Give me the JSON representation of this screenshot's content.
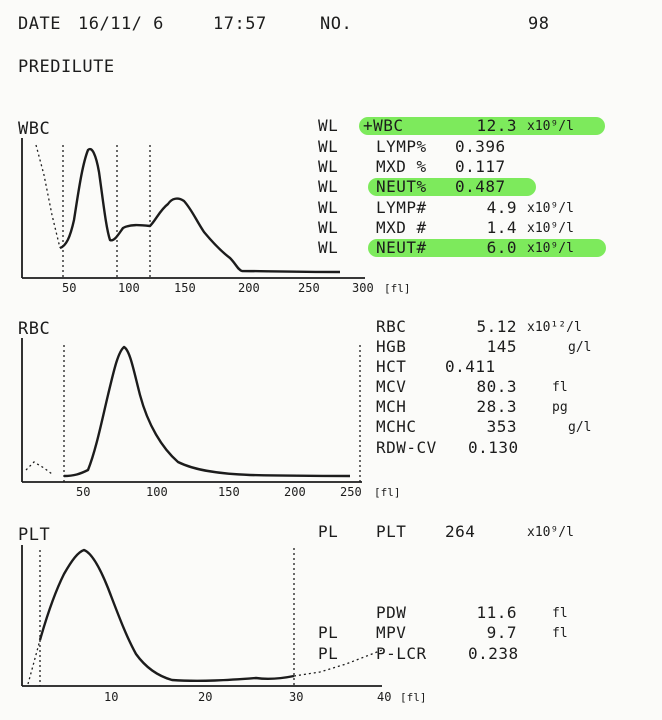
{
  "accent": "#7dea5c",
  "header": {
    "date_label": "DATE",
    "date": "16/11/ 6",
    "time": "17:57",
    "no_label": "NO.",
    "no_value": "98",
    "mode": "PREDILUTE"
  },
  "wbc": {
    "title": "WBC",
    "axis_unit": "[fl]",
    "ticks": [
      "50",
      "100",
      "150",
      "200",
      "250",
      "300"
    ],
    "rows": [
      {
        "flag": "WL",
        "name": "+WBC",
        "value": "12.3",
        "unit": "x10⁹/l",
        "highlight": true
      },
      {
        "flag": "WL",
        "name": "LYMP%",
        "value": "0.396",
        "unit": "",
        "highlight": false
      },
      {
        "flag": "WL",
        "name": "MXD %",
        "value": "0.117",
        "unit": "",
        "highlight": false
      },
      {
        "flag": "WL",
        "name": "NEUT%",
        "value": "0.487",
        "unit": "",
        "highlight": true
      },
      {
        "flag": "WL",
        "name": "LYMP#",
        "value": "4.9",
        "unit": "x10⁹/l",
        "highlight": false
      },
      {
        "flag": "WL",
        "name": "MXD #",
        "value": "1.4",
        "unit": "x10⁹/l",
        "highlight": false
      },
      {
        "flag": "WL",
        "name": "NEUT#",
        "value": "6.0",
        "unit": "x10⁹/l",
        "highlight": true
      }
    ]
  },
  "rbc": {
    "title": "RBC",
    "axis_unit": "[fl]",
    "ticks": [
      "50",
      "100",
      "150",
      "200",
      "250"
    ],
    "rows": [
      {
        "name": "RBC",
        "value": "5.12",
        "unit": "x10¹²/l"
      },
      {
        "name": "HGB",
        "value": "145",
        "unit": "g/l"
      },
      {
        "name": "HCT",
        "value": "0.411",
        "unit": ""
      },
      {
        "name": "MCV",
        "value": "80.3",
        "unit": "fl"
      },
      {
        "name": "MCH",
        "value": "28.3",
        "unit": "pg"
      },
      {
        "name": "MCHC",
        "value": "353",
        "unit": "g/l"
      },
      {
        "name": "RDW-CV",
        "value": "0.130",
        "unit": ""
      }
    ]
  },
  "plt": {
    "title": "PLT",
    "axis_unit": "[fl]",
    "ticks": [
      "10",
      "20",
      "30",
      "40"
    ],
    "rows": [
      {
        "flag": "PL",
        "name": "PLT",
        "value": "264",
        "unit": "x10⁹/l"
      },
      {
        "flag": "",
        "name": "PDW",
        "value": "11.6",
        "unit": "fl"
      },
      {
        "flag": "PL",
        "name": "MPV",
        "value": "9.7",
        "unit": "fl"
      },
      {
        "flag": "PL",
        "name": "P-LCR",
        "value": "0.238",
        "unit": ""
      }
    ]
  }
}
